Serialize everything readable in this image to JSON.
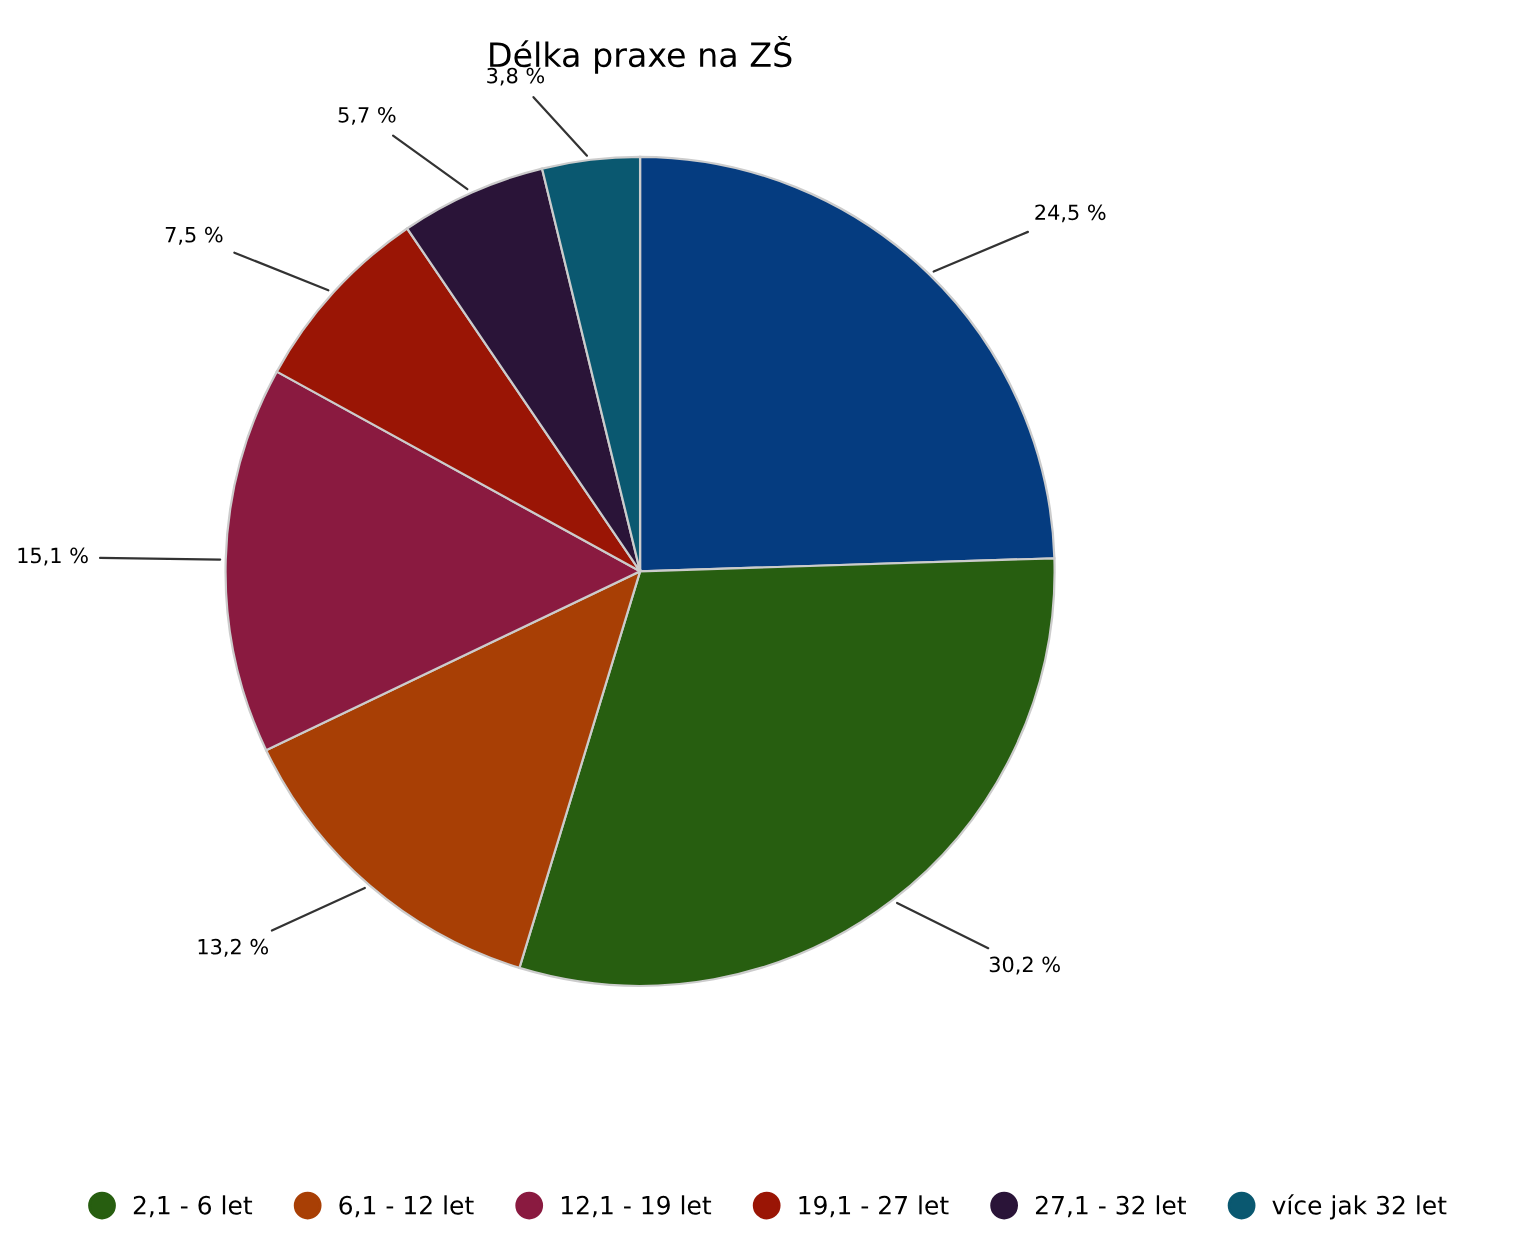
{
  "chart_data": {
    "type": "pie",
    "title": "Délka praxe na ZŠ",
    "categories": [
      null,
      "2,1 - 6 let",
      "6,1 - 12 let",
      "12,1 - 19 let",
      "19,1 - 27 let",
      "27,1 - 32 let",
      "více jak 32 let"
    ],
    "values": [
      24.5,
      30.2,
      13.2,
      15.1,
      7.5,
      5.7,
      3.8
    ],
    "value_labels": [
      "24,5 %",
      "30,2 %",
      "13,2 %",
      "15,1 %",
      "7,5 %",
      "5,7 %",
      "3,8 %"
    ],
    "colors": [
      "#053c80",
      "#275e10",
      "#a83f05",
      "#8a1a40",
      "#9a1505",
      "#2a1438",
      "#0a5870"
    ],
    "legend": "bottom"
  }
}
